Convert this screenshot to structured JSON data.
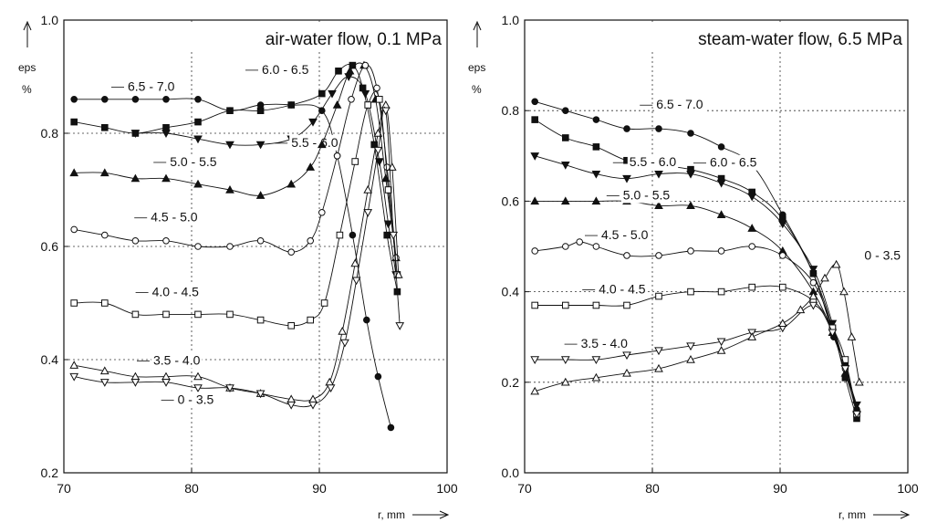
{
  "chart_data": [
    {
      "type": "line",
      "title": "air-water flow, 0.1 MPa",
      "ylabel": "eps",
      "ylabel_unit": "%",
      "xlabel": "r, mm",
      "xlim": [
        70,
        100
      ],
      "ylim": [
        0.2,
        1.0
      ],
      "x_ticks": [
        "70",
        "80",
        "90",
        "100"
      ],
      "y_ticks": [
        "0.2",
        "0.4",
        "0.6",
        "0.8",
        "1.0"
      ],
      "grid": "dotted at x=80,90 and y=0.4,0.6,0.8",
      "series": [
        {
          "name": "6.5 - 7.0",
          "marker": "filled-circle",
          "points": [
            [
              70.8,
              0.86
            ],
            [
              73.2,
              0.86
            ],
            [
              75.6,
              0.86
            ],
            [
              78,
              0.86
            ],
            [
              80.5,
              0.86
            ],
            [
              83,
              0.84
            ],
            [
              85.4,
              0.85
            ],
            [
              87.8,
              0.85
            ],
            [
              90.2,
              0.84
            ],
            [
              91.4,
              0.76
            ],
            [
              92.6,
              0.62
            ],
            [
              93.7,
              0.47
            ],
            [
              94.6,
              0.37
            ],
            [
              95.6,
              0.28
            ]
          ]
        },
        {
          "name": "6.0 - 6.5",
          "marker": "filled-square",
          "points": [
            [
              70.8,
              0.82
            ],
            [
              73.2,
              0.81
            ],
            [
              75.6,
              0.8
            ],
            [
              78,
              0.81
            ],
            [
              80.5,
              0.82
            ],
            [
              83,
              0.84
            ],
            [
              85.4,
              0.84
            ],
            [
              87.8,
              0.85
            ],
            [
              90.2,
              0.87
            ],
            [
              91.5,
              0.91
            ],
            [
              92.6,
              0.92
            ],
            [
              93.4,
              0.88
            ],
            [
              94.3,
              0.78
            ],
            [
              95.3,
              0.62
            ],
            [
              96.1,
              0.52
            ]
          ]
        },
        {
          "name": "5.5 - 6.0",
          "marker": "filled-triangle-down",
          "points": [
            [
              75.6,
              0.8
            ],
            [
              78,
              0.8
            ],
            [
              80.5,
              0.79
            ],
            [
              83,
              0.78
            ],
            [
              85.4,
              0.78
            ],
            [
              87.8,
              0.79
            ],
            [
              89.5,
              0.82
            ],
            [
              91,
              0.87
            ],
            [
              92.3,
              0.9
            ],
            [
              93.6,
              0.87
            ],
            [
              94.7,
              0.75
            ],
            [
              95.4,
              0.64
            ],
            [
              96,
              0.55
            ]
          ]
        },
        {
          "name": "5.0 - 5.5",
          "marker": "filled-triangle-up",
          "points": [
            [
              70.8,
              0.73
            ],
            [
              73.2,
              0.73
            ],
            [
              75.6,
              0.72
            ],
            [
              78,
              0.72
            ],
            [
              80.5,
              0.71
            ],
            [
              83,
              0.7
            ],
            [
              85.4,
              0.69
            ],
            [
              87.8,
              0.71
            ],
            [
              89.3,
              0.74
            ],
            [
              90.2,
              0.78
            ],
            [
              91.4,
              0.85
            ],
            [
              92.4,
              0.91
            ],
            [
              93.5,
              0.92
            ],
            [
              94.4,
              0.86
            ],
            [
              95.2,
              0.72
            ],
            [
              96,
              0.58
            ]
          ]
        },
        {
          "name": "4.5 - 5.0",
          "marker": "open-circle",
          "points": [
            [
              70.8,
              0.63
            ],
            [
              73.2,
              0.62
            ],
            [
              75.6,
              0.61
            ],
            [
              78,
              0.61
            ],
            [
              80.5,
              0.6
            ],
            [
              83,
              0.6
            ],
            [
              85.4,
              0.61
            ],
            [
              87.8,
              0.59
            ],
            [
              89.3,
              0.61
            ],
            [
              90.2,
              0.66
            ],
            [
              91.4,
              0.76
            ],
            [
              92.5,
              0.86
            ],
            [
              93.6,
              0.92
            ],
            [
              94.5,
              0.88
            ],
            [
              95.3,
              0.74
            ],
            [
              96,
              0.58
            ]
          ]
        },
        {
          "name": "4.0 - 4.5",
          "marker": "open-square",
          "points": [
            [
              70.8,
              0.5
            ],
            [
              73.2,
              0.5
            ],
            [
              75.6,
              0.48
            ],
            [
              78,
              0.48
            ],
            [
              80.5,
              0.48
            ],
            [
              83,
              0.48
            ],
            [
              85.4,
              0.47
            ],
            [
              87.8,
              0.46
            ],
            [
              89.3,
              0.47
            ],
            [
              90.4,
              0.5
            ],
            [
              91.6,
              0.62
            ],
            [
              92.8,
              0.75
            ],
            [
              93.8,
              0.85
            ],
            [
              94.7,
              0.86
            ],
            [
              95.4,
              0.7
            ],
            [
              96.1,
              0.55
            ]
          ]
        },
        {
          "name": "3.5 - 4.0",
          "marker": "open-triangle-up",
          "points": [
            [
              70.8,
              0.39
            ],
            [
              73.2,
              0.38
            ],
            [
              75.6,
              0.37
            ],
            [
              78,
              0.37
            ],
            [
              80.5,
              0.37
            ],
            [
              83,
              0.35
            ],
            [
              85.4,
              0.34
            ],
            [
              87.8,
              0.33
            ],
            [
              89.5,
              0.33
            ],
            [
              90.8,
              0.36
            ],
            [
              91.8,
              0.45
            ],
            [
              92.8,
              0.57
            ],
            [
              93.8,
              0.7
            ],
            [
              94.6,
              0.8
            ],
            [
              95.2,
              0.85
            ],
            [
              95.7,
              0.74
            ],
            [
              96.2,
              0.55
            ]
          ]
        },
        {
          "name": "0 - 3.5",
          "marker": "open-triangle-down",
          "points": [
            [
              70.8,
              0.37
            ],
            [
              73.2,
              0.36
            ],
            [
              75.6,
              0.36
            ],
            [
              78,
              0.36
            ],
            [
              80.5,
              0.35
            ],
            [
              83,
              0.35
            ],
            [
              85.4,
              0.34
            ],
            [
              87.8,
              0.32
            ],
            [
              89.5,
              0.32
            ],
            [
              90.9,
              0.35
            ],
            [
              92,
              0.43
            ],
            [
              92.9,
              0.54
            ],
            [
              93.8,
              0.66
            ],
            [
              94.6,
              0.77
            ],
            [
              95.2,
              0.84
            ],
            [
              95.8,
              0.62
            ],
            [
              96.3,
              0.46
            ]
          ]
        }
      ]
    },
    {
      "type": "line",
      "title": "steam-water flow, 6.5 MPa",
      "ylabel": "eps",
      "ylabel_unit": "%",
      "xlabel": "r, mm",
      "xlim": [
        70,
        100
      ],
      "ylim": [
        0.0,
        1.0
      ],
      "x_ticks": [
        "70",
        "80",
        "90",
        "100"
      ],
      "y_ticks": [
        "0.0",
        "0.2",
        "0.4",
        "0.6",
        "0.8",
        "1.0"
      ],
      "grid": "dotted at x=80,90 and y=0.2,0.4,0.6,0.8",
      "series": [
        {
          "name": "6.5 - 7.0",
          "marker": "filled-circle",
          "points": [
            [
              70.8,
              0.82
            ],
            [
              73.2,
              0.8
            ],
            [
              75.6,
              0.78
            ],
            [
              78,
              0.76
            ],
            [
              80.5,
              0.76
            ],
            [
              83,
              0.75
            ],
            [
              85.4,
              0.72
            ],
            [
              87.8,
              0.68
            ],
            [
              90.2,
              0.57
            ],
            [
              92.6,
              0.44
            ],
            [
              94.2,
              0.3
            ],
            [
              95.1,
              0.24
            ],
            [
              96,
              0.14
            ]
          ]
        },
        {
          "name": "6.0 - 6.5",
          "marker": "filled-square",
          "points": [
            [
              70.8,
              0.78
            ],
            [
              73.2,
              0.74
            ],
            [
              75.6,
              0.72
            ],
            [
              78,
              0.69
            ],
            [
              80.5,
              0.68
            ],
            [
              83,
              0.67
            ],
            [
              85.4,
              0.65
            ],
            [
              87.8,
              0.62
            ],
            [
              90.2,
              0.56
            ],
            [
              92.6,
              0.44
            ],
            [
              94.1,
              0.32
            ],
            [
              95.1,
              0.21
            ],
            [
              96,
              0.12
            ]
          ]
        },
        {
          "name": "5.5 - 6.0",
          "marker": "filled-triangle-down",
          "points": [
            [
              70.8,
              0.7
            ],
            [
              73.2,
              0.68
            ],
            [
              75.6,
              0.66
            ],
            [
              78,
              0.65
            ],
            [
              80.5,
              0.66
            ],
            [
              83,
              0.66
            ],
            [
              85.4,
              0.64
            ],
            [
              87.8,
              0.61
            ],
            [
              90.2,
              0.55
            ],
            [
              92.6,
              0.45
            ],
            [
              94.1,
              0.33
            ],
            [
              95.1,
              0.23
            ],
            [
              96,
              0.15
            ]
          ]
        },
        {
          "name": "5.0 - 5.5",
          "marker": "filled-triangle-up",
          "points": [
            [
              70.8,
              0.6
            ],
            [
              73.2,
              0.6
            ],
            [
              75.6,
              0.6
            ],
            [
              78,
              0.6
            ],
            [
              80.5,
              0.59
            ],
            [
              83,
              0.59
            ],
            [
              85.4,
              0.57
            ],
            [
              87.8,
              0.54
            ],
            [
              90.2,
              0.49
            ],
            [
              92.6,
              0.4
            ],
            [
              94.1,
              0.31
            ],
            [
              95.1,
              0.22
            ],
            [
              96,
              0.14
            ]
          ]
        },
        {
          "name": "4.5 - 5.0",
          "marker": "open-circle",
          "points": [
            [
              70.8,
              0.49
            ],
            [
              73.2,
              0.5
            ],
            [
              74.3,
              0.51
            ],
            [
              75.6,
              0.5
            ],
            [
              78,
              0.48
            ],
            [
              80.5,
              0.48
            ],
            [
              83,
              0.49
            ],
            [
              85.4,
              0.49
            ],
            [
              87.8,
              0.5
            ],
            [
              90.2,
              0.48
            ],
            [
              92.6,
              0.42
            ],
            [
              94.1,
              0.32
            ],
            [
              95.1,
              0.23
            ],
            [
              96,
              0.13
            ]
          ]
        },
        {
          "name": "4.0 - 4.5",
          "marker": "open-square",
          "points": [
            [
              70.8,
              0.37
            ],
            [
              73.2,
              0.37
            ],
            [
              75.6,
              0.37
            ],
            [
              78,
              0.37
            ],
            [
              80.5,
              0.39
            ],
            [
              83,
              0.4
            ],
            [
              85.4,
              0.4
            ],
            [
              87.8,
              0.41
            ],
            [
              90.2,
              0.41
            ],
            [
              92.6,
              0.38
            ],
            [
              94.1,
              0.32
            ],
            [
              95.1,
              0.25
            ],
            [
              96,
              0.13
            ]
          ]
        },
        {
          "name": "3.5 - 4.0",
          "marker": "open-triangle-down",
          "points": [
            [
              70.8,
              0.25
            ],
            [
              73.2,
              0.25
            ],
            [
              75.6,
              0.25
            ],
            [
              78,
              0.26
            ],
            [
              80.5,
              0.27
            ],
            [
              83,
              0.28
            ],
            [
              85.4,
              0.29
            ],
            [
              87.8,
              0.31
            ],
            [
              90.2,
              0.32
            ],
            [
              92.6,
              0.37
            ],
            [
              94.1,
              0.31
            ],
            [
              95.1,
              0.23
            ],
            [
              96,
              0.13
            ]
          ]
        },
        {
          "name": "0 - 3.5",
          "marker": "open-triangle-up",
          "points": [
            [
              70.8,
              0.18
            ],
            [
              73.2,
              0.2
            ],
            [
              75.6,
              0.21
            ],
            [
              78,
              0.22
            ],
            [
              80.5,
              0.23
            ],
            [
              83,
              0.25
            ],
            [
              85.4,
              0.27
            ],
            [
              87.8,
              0.3
            ],
            [
              90.2,
              0.33
            ],
            [
              91.6,
              0.36
            ],
            [
              92.6,
              0.39
            ],
            [
              93.5,
              0.43
            ],
            [
              94.4,
              0.46
            ],
            [
              95,
              0.4
            ],
            [
              95.6,
              0.3
            ],
            [
              96.2,
              0.2
            ]
          ]
        }
      ]
    }
  ]
}
